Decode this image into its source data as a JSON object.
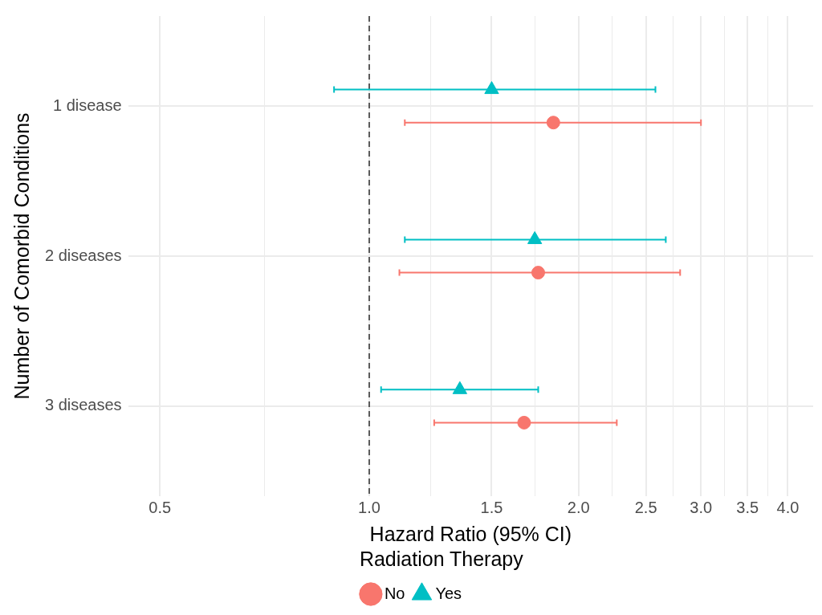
{
  "chart_data": {
    "type": "scatter",
    "orientation": "horizontal",
    "xlabel": "Hazard Ratio (95% CI)",
    "ylabel": "Number of Comorbid Conditions",
    "legend_title": "Radiation Therapy",
    "legend": "bottom",
    "grid": true,
    "categories": [
      "1 disease",
      "2 diseases",
      "3 diseases"
    ],
    "series": [
      {
        "name": "No",
        "color": "#f8766d",
        "marker": "circle",
        "values": [
          1.84,
          1.75,
          1.67
        ],
        "errors": [
          [
            1.125,
            3.0
          ],
          [
            1.105,
            2.8
          ],
          [
            1.24,
            2.27
          ]
        ]
      },
      {
        "name": "Yes",
        "color": "#00bfc4",
        "marker": "triangle",
        "values": [
          1.5,
          1.73,
          1.35
        ],
        "errors": [
          [
            0.89,
            2.58
          ],
          [
            1.125,
            2.67
          ],
          [
            1.04,
            1.75
          ]
        ]
      }
    ],
    "log": "x",
    "xlim": [
      0.45,
      4.35
    ],
    "xticks": [
      {
        "value": 0.5,
        "label": "0.5"
      },
      {
        "value": 0.707,
        "label": null
      },
      {
        "value": 1,
        "label": "1.0"
      },
      {
        "value": 1.225,
        "label": null
      },
      {
        "value": 1.5,
        "label": "1.5"
      },
      {
        "value": 1.732,
        "label": null
      },
      {
        "value": 2,
        "label": "2.0"
      },
      {
        "value": 2.236,
        "label": null
      },
      {
        "value": 2.5,
        "label": "2.5"
      },
      {
        "value": 2.739,
        "label": null
      },
      {
        "value": 3,
        "label": "3.0"
      },
      {
        "value": 3.24,
        "label": null
      },
      {
        "value": 3.5,
        "label": "3.5"
      },
      {
        "value": 3.742,
        "label": null
      },
      {
        "value": 4,
        "label": "4.0"
      }
    ],
    "ref_lines": [
      {
        "axis": "x",
        "value": 1,
        "label": null,
        "color": "#595959",
        "line_style": "dashed"
      }
    ]
  }
}
